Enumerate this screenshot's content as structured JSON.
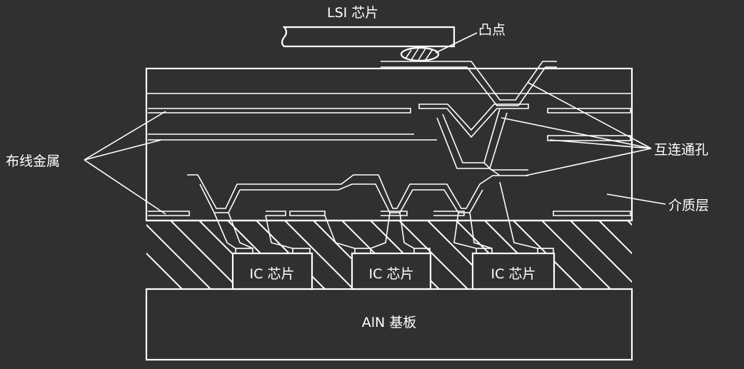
{
  "labels": {
    "lsi_chip": "LSI 芯片",
    "bump": "凸点",
    "wiring_metal": "布线金属",
    "interconnect_via": "互连通孔",
    "dielectric_layer": "介质层",
    "ic_chip_1": "IC 芯片",
    "ic_chip_2": "IC 芯片",
    "ic_chip_3": "IC 芯片",
    "substrate": "AlN 基板"
  },
  "colors": {
    "background": "#303030",
    "line": "#ffffff"
  }
}
